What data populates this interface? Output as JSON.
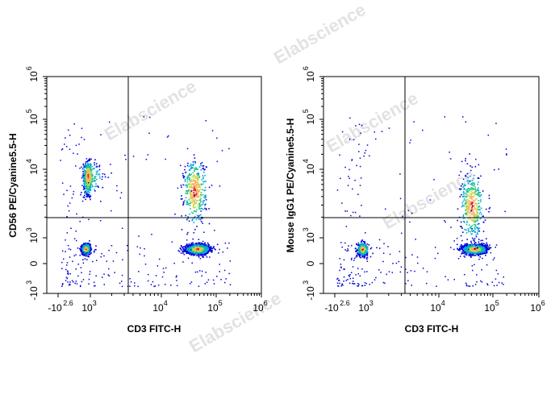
{
  "watermark": "Elabscience",
  "colors": {
    "gate": "#000000",
    "frame": "#000000"
  },
  "chart_data": [
    {
      "type": "scatter",
      "subtype": "flow-cytometry density dot plot",
      "title": "",
      "xlabel": "CD3 FITC-H",
      "ylabel": "CD56 PE/Cyanine5.5-H",
      "x_scale": "biexponential",
      "y_scale": "biexponential",
      "xlim": [
        "-10^2.6",
        "10^6"
      ],
      "ylim": [
        "-10^3",
        "10^6"
      ],
      "x_ticks": [
        {
          "base": "-10",
          "exp": "2.6"
        },
        {
          "base": "10",
          "exp": "3"
        },
        {
          "base": "10",
          "exp": "4"
        },
        {
          "base": "10",
          "exp": "5"
        },
        {
          "base": "10",
          "exp": "6"
        }
      ],
      "y_ticks": [
        {
          "base": "-10",
          "exp": "3"
        },
        {
          "base": "0",
          "exp": ""
        },
        {
          "base": "10",
          "exp": "3"
        },
        {
          "base": "10",
          "exp": "4"
        },
        {
          "base": "10",
          "exp": "5"
        },
        {
          "base": "10",
          "exp": "6"
        }
      ],
      "quadrant_gate": {
        "x": 2400,
        "y": 2000
      },
      "populations": [
        {
          "x": 500,
          "y": 300,
          "density": "high"
        },
        {
          "x": 700,
          "y": 8000,
          "density": "medium"
        },
        {
          "x": 45000,
          "y": 300,
          "density": "very high"
        },
        {
          "x": 40000,
          "y": 5000,
          "density": "low"
        }
      ]
    },
    {
      "type": "scatter",
      "subtype": "flow-cytometry density dot plot",
      "title": "",
      "xlabel": "CD3 FITC-H",
      "ylabel": "Mouse IgG1 PE/Cyanine5.5-H",
      "x_scale": "biexponential",
      "y_scale": "biexponential",
      "xlim": [
        "-10^2.6",
        "10^6"
      ],
      "ylim": [
        "-10^3",
        "10^6"
      ],
      "x_ticks": [
        {
          "base": "-10",
          "exp": "2.6"
        },
        {
          "base": "10",
          "exp": "3"
        },
        {
          "base": "10",
          "exp": "4"
        },
        {
          "base": "10",
          "exp": "5"
        },
        {
          "base": "10",
          "exp": "6"
        }
      ],
      "y_ticks": [
        {
          "base": "-10",
          "exp": "3"
        },
        {
          "base": "0",
          "exp": ""
        },
        {
          "base": "10",
          "exp": "3"
        },
        {
          "base": "10",
          "exp": "4"
        },
        {
          "base": "10",
          "exp": "5"
        },
        {
          "base": "10",
          "exp": "6"
        }
      ],
      "quadrant_gate": {
        "x": 2400,
        "y": 2000
      },
      "populations": [
        {
          "x": 500,
          "y": 300,
          "density": "medium"
        },
        {
          "x": 45000,
          "y": 300,
          "density": "very high"
        },
        {
          "x": 40000,
          "y": 3000,
          "density": "low"
        }
      ]
    }
  ]
}
